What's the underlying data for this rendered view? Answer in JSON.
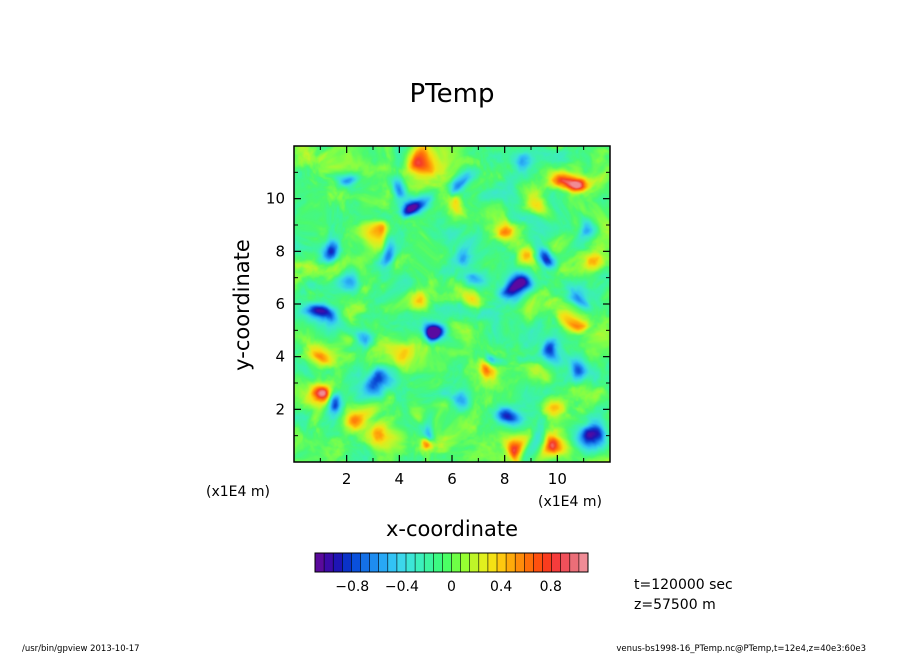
{
  "chart_data": {
    "type": "heatmap",
    "title": "PTemp",
    "xlabel": "x-coordinate",
    "ylabel": "y-coordinate",
    "x_unit": "(x1E4 m)",
    "y_unit": "(x1E4 m)",
    "xlim": [
      0,
      12
    ],
    "ylim": [
      0,
      12
    ],
    "xticks": [
      2,
      4,
      6,
      8,
      10
    ],
    "yticks": [
      2,
      4,
      6,
      8,
      10
    ],
    "x_tick_labels": [
      "2",
      "4",
      "6",
      "8",
      "10"
    ],
    "y_tick_labels": [
      "2",
      "4",
      "6",
      "8",
      "10"
    ],
    "value_range": [
      -1.1,
      1.1
    ],
    "colorbar": {
      "tick_values": [
        -0.8,
        -0.4,
        0,
        0.4,
        0.8
      ],
      "tick_labels": [
        "−0.8",
        "−0.4",
        "0",
        "0.4",
        "0.8"
      ],
      "colors": [
        "#5a0a9c",
        "#3c0aa8",
        "#1e14b4",
        "#0a32c8",
        "#0a50dc",
        "#1470e6",
        "#1e8cf0",
        "#28a8f5",
        "#32c3f5",
        "#3cd7eb",
        "#3ce6d7",
        "#3cf0bc",
        "#3cf5a0",
        "#3cfa82",
        "#4bff64",
        "#6eff46",
        "#96ff32",
        "#bef528",
        "#e1f01e",
        "#f5e114",
        "#ffc80f",
        "#ffaa0a",
        "#ff8c0a",
        "#ff6e0a",
        "#ff500f",
        "#fa3c1e",
        "#f53c3c",
        "#f0505a",
        "#eb6e78",
        "#f08c96"
      ]
    },
    "features": [
      {
        "x": 5.2,
        "y": 4.8,
        "v": -1.0
      },
      {
        "x": 5.4,
        "y": 4.8,
        "v": -0.9
      },
      {
        "x": 8.5,
        "y": 6.5,
        "v": -1.0
      },
      {
        "x": 8.2,
        "y": 6.7,
        "v": -0.8
      },
      {
        "x": 9.7,
        "y": 7.8,
        "v": -0.9
      },
      {
        "x": 1.2,
        "y": 8.2,
        "v": -0.9
      },
      {
        "x": 1.0,
        "y": 5.5,
        "v": -0.9
      },
      {
        "x": 1.5,
        "y": 5.3,
        "v": -0.7
      },
      {
        "x": 4.7,
        "y": 9.9,
        "v": -0.9
      },
      {
        "x": 4.5,
        "y": 9.5,
        "v": -0.8
      },
      {
        "x": 4.0,
        "y": 10.6,
        "v": -0.7
      },
      {
        "x": 3.5,
        "y": 3.0,
        "v": -0.9
      },
      {
        "x": 3.0,
        "y": 2.7,
        "v": -0.7
      },
      {
        "x": 9.9,
        "y": 4.1,
        "v": -0.8
      },
      {
        "x": 10.8,
        "y": 3.5,
        "v": -0.8
      },
      {
        "x": 11.0,
        "y": 0.7,
        "v": -0.9
      },
      {
        "x": 11.4,
        "y": 1.0,
        "v": -0.8
      },
      {
        "x": 8.2,
        "y": 1.8,
        "v": -0.8
      },
      {
        "x": 3.5,
        "y": 8.0,
        "v": -0.7
      },
      {
        "x": 6.2,
        "y": 10.4,
        "v": -0.7
      },
      {
        "x": 2.0,
        "y": 10.8,
        "v": -0.7
      },
      {
        "x": 2.1,
        "y": 7.1,
        "v": -0.6
      },
      {
        "x": 6.6,
        "y": 8.0,
        "v": -0.5
      },
      {
        "x": 11.0,
        "y": 9.0,
        "v": -0.6
      },
      {
        "x": 10.8,
        "y": 6.3,
        "v": -0.5
      },
      {
        "x": 6.3,
        "y": 2.2,
        "v": -0.6
      },
      {
        "x": 7.0,
        "y": 7.0,
        "v": -0.5
      },
      {
        "x": 9.0,
        "y": 11.3,
        "v": -0.5
      },
      {
        "x": 1.5,
        "y": 2.2,
        "v": -0.6
      },
      {
        "x": 5.2,
        "y": 1.2,
        "v": -0.5
      },
      {
        "x": 7.5,
        "y": 4.0,
        "v": -0.5
      },
      {
        "x": 2.7,
        "y": 4.6,
        "v": -0.5
      },
      {
        "x": 10.9,
        "y": 10.5,
        "v": 1.0
      },
      {
        "x": 10.3,
        "y": 10.6,
        "v": 0.7
      },
      {
        "x": 0.9,
        "y": 2.6,
        "v": 1.0
      },
      {
        "x": 8.4,
        "y": 0.5,
        "v": 0.9
      },
      {
        "x": 10.0,
        "y": 0.4,
        "v": 0.9
      },
      {
        "x": 5.1,
        "y": 0.7,
        "v": 0.8
      },
      {
        "x": 5.0,
        "y": 11.5,
        "v": 0.7
      },
      {
        "x": 3.1,
        "y": 8.5,
        "v": 0.6
      },
      {
        "x": 10.7,
        "y": 5.2,
        "v": 0.7
      },
      {
        "x": 7.9,
        "y": 8.7,
        "v": 0.6
      },
      {
        "x": 8.8,
        "y": 7.5,
        "v": 0.6
      },
      {
        "x": 6.2,
        "y": 9.6,
        "v": 0.5
      },
      {
        "x": 2.6,
        "y": 1.6,
        "v": 0.6
      },
      {
        "x": 7.2,
        "y": 3.4,
        "v": 0.5
      },
      {
        "x": 4.6,
        "y": 6.0,
        "v": 0.5
      },
      {
        "x": 6.8,
        "y": 6.2,
        "v": 0.5
      },
      {
        "x": 10.0,
        "y": 2.0,
        "v": 0.5
      },
      {
        "x": 1.2,
        "y": 4.2,
        "v": 0.5
      },
      {
        "x": 3.6,
        "y": 0.8,
        "v": 0.5
      },
      {
        "x": 11.4,
        "y": 7.6,
        "v": 0.5
      },
      {
        "x": 4.0,
        "y": 4.0,
        "v": 0.4
      },
      {
        "x": 9.3,
        "y": 9.6,
        "v": 0.4
      }
    ]
  },
  "info": {
    "time": "t=120000 sec",
    "z": "z=57500 m"
  },
  "footer": {
    "left": "/usr/bin/gpview   2013-10-17",
    "right": "venus-bs1998-16_PTemp.nc@PTemp,t=12e4,z=40e3:60e3"
  }
}
